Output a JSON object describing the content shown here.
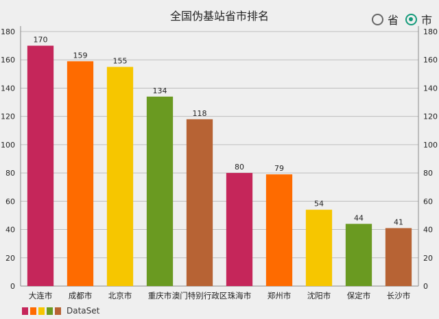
{
  "chart_data": {
    "type": "bar",
    "title": "全国伪基站省市排名",
    "categories": [
      "大连市",
      "成都市",
      "北京市",
      "重庆市",
      "澳门特别行政区",
      "珠海市",
      "郑州市",
      "沈阳市",
      "保定市",
      "长沙市"
    ],
    "values": [
      170,
      159,
      155,
      134,
      118,
      80,
      79,
      54,
      44,
      41
    ],
    "colors": [
      "#c5265a",
      "#fe6b00",
      "#f6c600",
      "#6a9a21",
      "#b76334",
      "#c5265a",
      "#fe6b00",
      "#f6c600",
      "#6a9a21",
      "#b76334"
    ],
    "ylim": [
      0,
      180
    ],
    "yticks": [
      0,
      20,
      40,
      60,
      80,
      100,
      120,
      140,
      160,
      180
    ],
    "grid": true,
    "legend": {
      "position": "bottom-left",
      "label": "DataSet",
      "swatches": [
        "#c5265a",
        "#fe6b00",
        "#f6c600",
        "#6a9a21",
        "#b76334"
      ]
    }
  },
  "toggle": {
    "options": [
      {
        "label": "省",
        "checked": false
      },
      {
        "label": "市",
        "checked": true
      }
    ],
    "accent": "#139a7a"
  }
}
